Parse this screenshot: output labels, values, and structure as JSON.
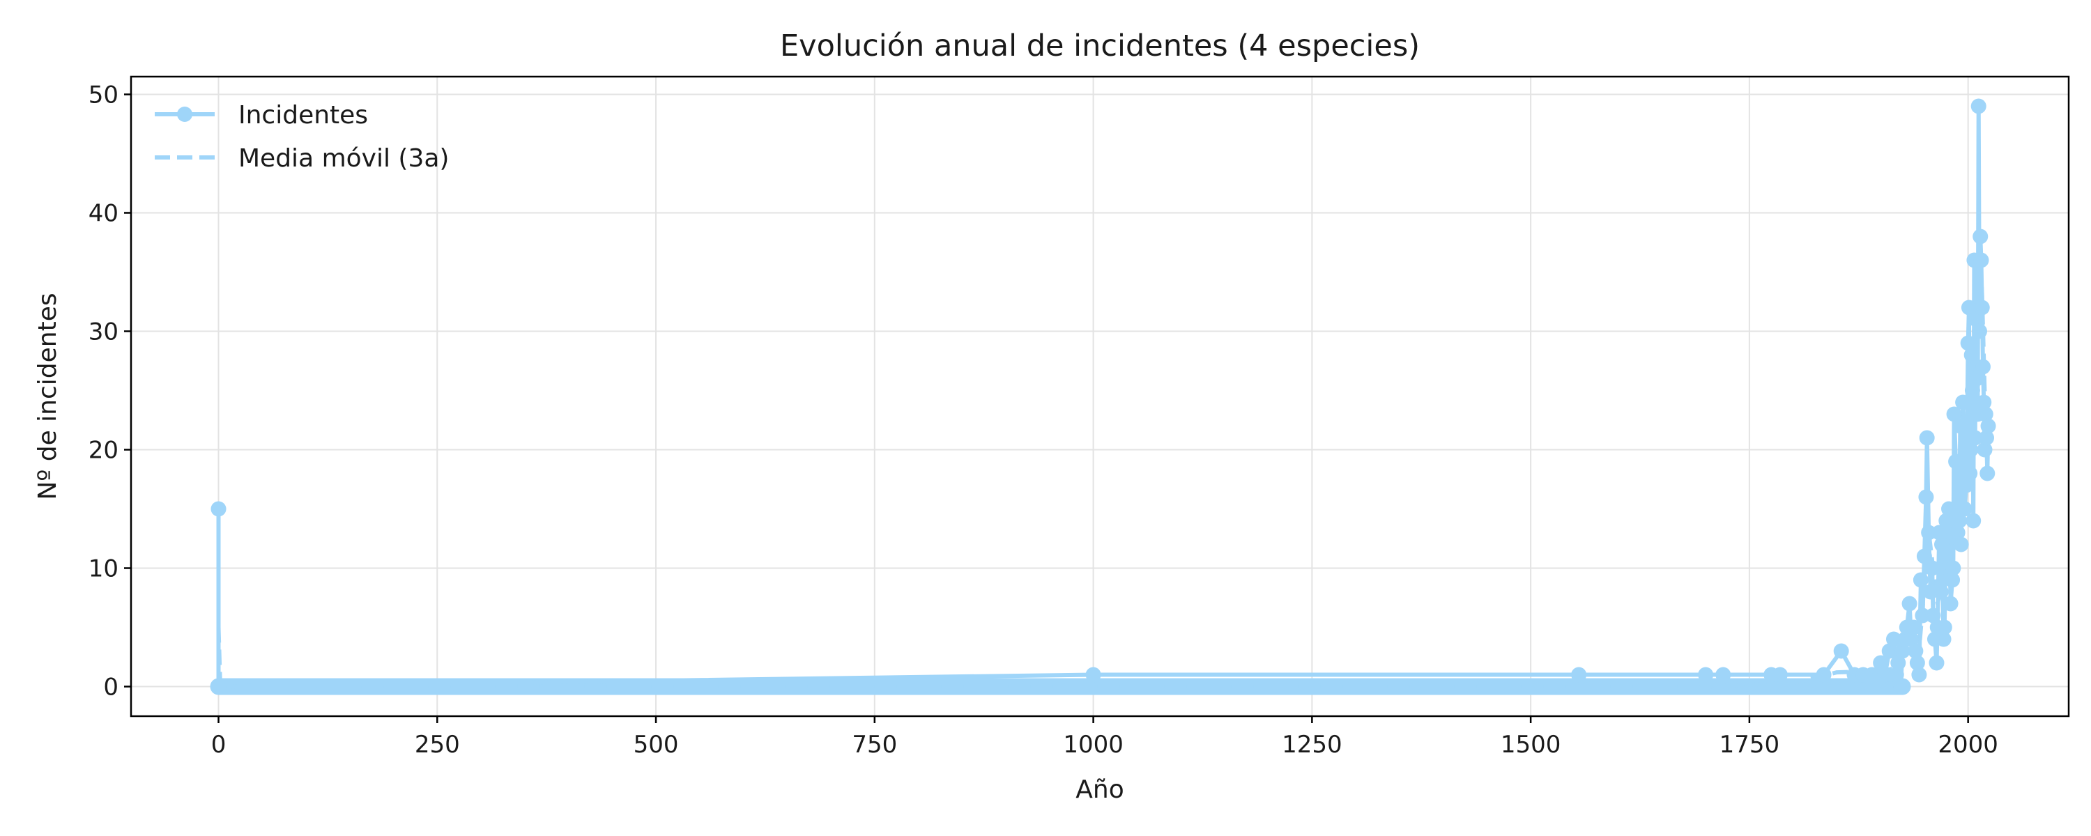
{
  "chart_data": {
    "type": "line",
    "title": "Evolución anual de incidentes (4 especies)",
    "xlabel": "Año",
    "ylabel": "Nº de incidentes",
    "xlim": [
      -100,
      2115
    ],
    "ylim": [
      -2.5,
      51.5
    ],
    "xticks": [
      0,
      250,
      500,
      750,
      1000,
      1250,
      1500,
      1750,
      2000
    ],
    "yticks": [
      0,
      10,
      20,
      30,
      40,
      50
    ],
    "grid": true,
    "legend_position": "top-left",
    "series": [
      {
        "name": "Incidentes",
        "style": "line-markers",
        "color": "#9fd5f9",
        "points": [
          [
            0,
            15
          ],
          [
            0,
            0
          ],
          [
            1000,
            1
          ],
          [
            1555,
            1
          ],
          [
            1700,
            1
          ],
          [
            1720,
            1
          ],
          [
            1775,
            1
          ],
          [
            1785,
            1
          ],
          [
            1835,
            1
          ],
          [
            1855,
            3
          ],
          [
            1870,
            1
          ],
          [
            1880,
            1
          ],
          [
            1890,
            1
          ],
          [
            1900,
            2
          ],
          [
            1905,
            1
          ],
          [
            1910,
            3
          ],
          [
            1915,
            4
          ],
          [
            1918,
            1
          ],
          [
            1920,
            2
          ],
          [
            1923,
            0
          ],
          [
            1925,
            3
          ],
          [
            1928,
            4
          ],
          [
            1930,
            5
          ],
          [
            1933,
            7
          ],
          [
            1935,
            4
          ],
          [
            1938,
            5
          ],
          [
            1940,
            3
          ],
          [
            1942,
            2
          ],
          [
            1944,
            1
          ],
          [
            1946,
            9
          ],
          [
            1948,
            6
          ],
          [
            1950,
            11
          ],
          [
            1952,
            16
          ],
          [
            1953,
            21
          ],
          [
            1955,
            13
          ],
          [
            1957,
            8
          ],
          [
            1959,
            10
          ],
          [
            1960,
            6
          ],
          [
            1962,
            4
          ],
          [
            1964,
            2
          ],
          [
            1965,
            5
          ],
          [
            1967,
            13
          ],
          [
            1969,
            8
          ],
          [
            1970,
            12
          ],
          [
            1972,
            4
          ],
          [
            1973,
            5
          ],
          [
            1975,
            14
          ],
          [
            1977,
            10
          ],
          [
            1978,
            15
          ],
          [
            1980,
            7
          ],
          [
            1982,
            9
          ],
          [
            1983,
            10
          ],
          [
            1984,
            23
          ],
          [
            1986,
            19
          ],
          [
            1988,
            13
          ],
          [
            1990,
            14
          ],
          [
            1991,
            22
          ],
          [
            1992,
            12
          ],
          [
            1994,
            24
          ],
          [
            1996,
            15
          ],
          [
            1998,
            17
          ],
          [
            2000,
            29
          ],
          [
            2001,
            32
          ],
          [
            2002,
            18
          ],
          [
            2003,
            20
          ],
          [
            2004,
            28
          ],
          [
            2005,
            25
          ],
          [
            2006,
            14
          ],
          [
            2007,
            36
          ],
          [
            2008,
            21
          ],
          [
            2009,
            31
          ],
          [
            2010,
            26
          ],
          [
            2011,
            23
          ],
          [
            2012,
            49
          ],
          [
            2013,
            30
          ],
          [
            2014,
            38
          ],
          [
            2015,
            36
          ],
          [
            2016,
            32
          ],
          [
            2017,
            27
          ],
          [
            2018,
            24
          ],
          [
            2019,
            20
          ],
          [
            2020,
            23
          ],
          [
            2021,
            21
          ],
          [
            2022,
            18
          ],
          [
            2023,
            22
          ]
        ]
      },
      {
        "name": "Media móvil (3a)",
        "style": "dashed",
        "color": "#9fd5f9",
        "points": [
          [
            0,
            5
          ],
          [
            2,
            0
          ],
          [
            1000,
            0
          ],
          [
            1700,
            0
          ],
          [
            1800,
            0.3
          ],
          [
            1850,
            1.2
          ],
          [
            1900,
            1.3
          ],
          [
            1920,
            1.6
          ],
          [
            1935,
            4.5
          ],
          [
            1945,
            4
          ],
          [
            1955,
            13
          ],
          [
            1965,
            7
          ],
          [
            1975,
            10
          ],
          [
            1985,
            16
          ],
          [
            1995,
            18
          ],
          [
            2005,
            23
          ],
          [
            2010,
            27
          ],
          [
            2013,
            38
          ],
          [
            2016,
            33
          ],
          [
            2020,
            22
          ],
          [
            2023,
            20
          ]
        ]
      }
    ]
  }
}
